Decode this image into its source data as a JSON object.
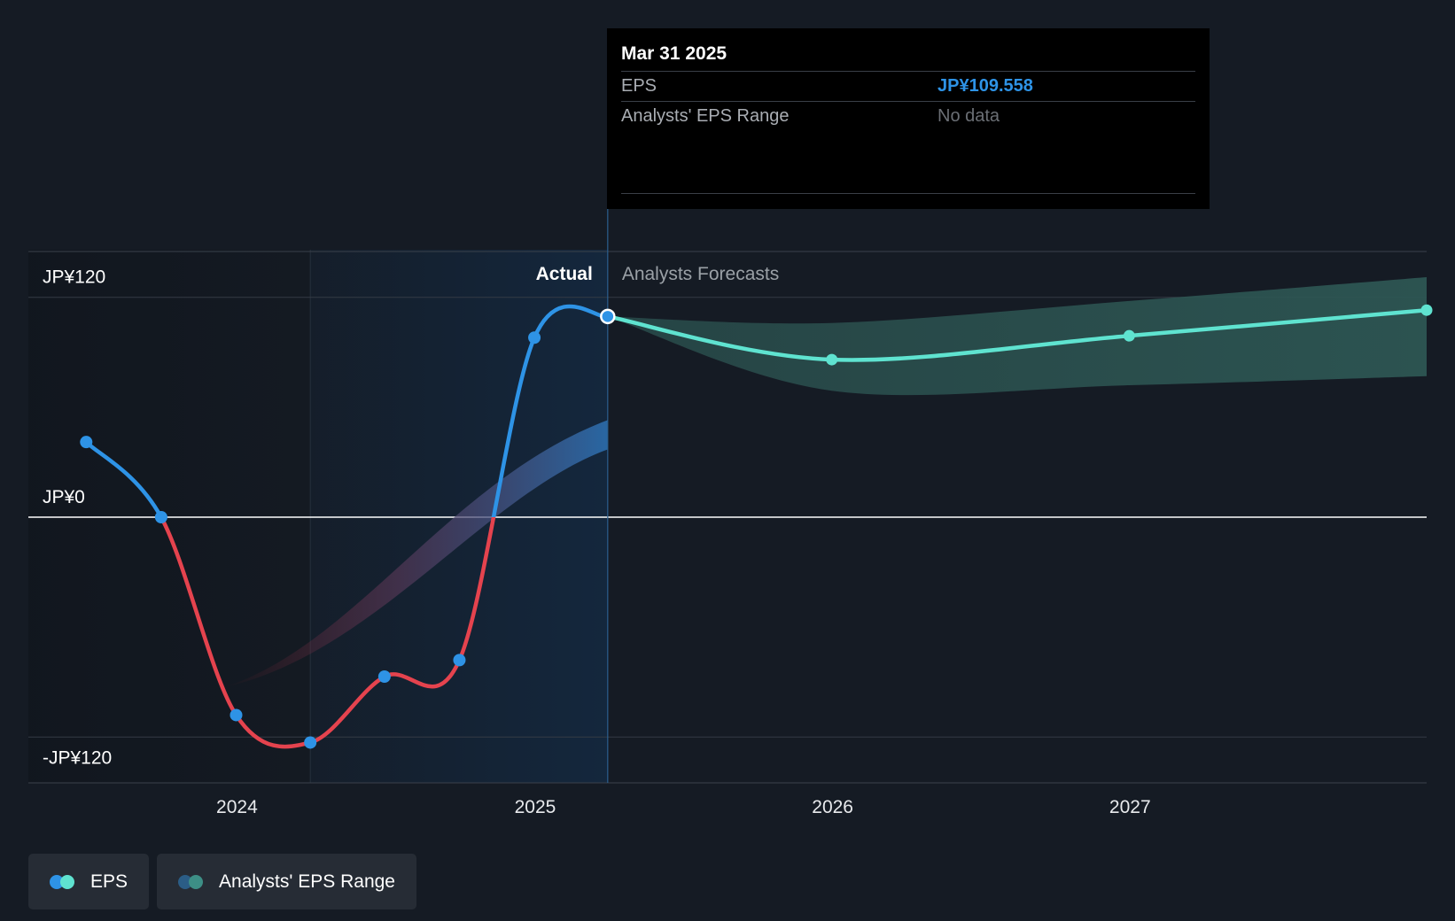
{
  "chart_data": {
    "type": "line",
    "x_ticks": [
      "2024",
      "2025",
      "2026",
      "2027"
    ],
    "y_ticks": [
      "JP¥120",
      "JP¥0",
      "-JP¥120"
    ],
    "ylim": [
      -145,
      145
    ],
    "xlim": [
      "2023-04-20",
      "2027-12-31"
    ],
    "region_labels": {
      "actual": "Actual",
      "forecast": "Analysts Forecasts"
    },
    "series": [
      {
        "name": "EPS",
        "kind": "actual",
        "points": [
          {
            "x": "2023-06-30",
            "y": 41
          },
          {
            "x": "2023-09-30",
            "y": 0
          },
          {
            "x": "2023-12-31",
            "y": -108
          },
          {
            "x": "2024-03-31",
            "y": -123
          },
          {
            "x": "2024-06-30",
            "y": -87
          },
          {
            "x": "2024-09-30",
            "y": -78
          },
          {
            "x": "2024-12-31",
            "y": 98
          },
          {
            "x": "2025-03-31",
            "y": 109.558
          }
        ]
      },
      {
        "name": "EPS",
        "kind": "forecast",
        "points": [
          {
            "x": "2025-03-31",
            "y": 109.558
          },
          {
            "x": "2025-12-31",
            "y": 86
          },
          {
            "x": "2026-12-31",
            "y": 99
          },
          {
            "x": "2027-12-31",
            "y": 113
          }
        ]
      },
      {
        "name": "Analysts' EPS Range",
        "kind": "range",
        "points": [
          {
            "x": "2025-03-31",
            "low": 109.558,
            "high": 109.558
          },
          {
            "x": "2025-12-31",
            "low": 69,
            "high": 106
          },
          {
            "x": "2026-12-31",
            "low": 72,
            "high": 118
          },
          {
            "x": "2027-12-31",
            "low": 77,
            "high": 131
          }
        ]
      }
    ],
    "colors": {
      "background": "#151b24",
      "eps_actual_positive": "#2e93e6",
      "eps_actual_negative": "#e5434e",
      "eps_forecast": "#5fe3d0",
      "range_fill": "#2d5653",
      "past_band": "#14273d"
    }
  },
  "tooltip": {
    "date": "Mar 31 2025",
    "rows": [
      {
        "label": "EPS",
        "value": "JP¥109.558"
      },
      {
        "label": "Analysts' EPS Range",
        "value": "No data"
      }
    ]
  },
  "legend": [
    {
      "label": "EPS",
      "colors": [
        "#2e93e6",
        "#5fe3d0"
      ]
    },
    {
      "label": "Analysts' EPS Range",
      "colors": [
        "#2b5d86",
        "#3d8f86"
      ]
    }
  ]
}
